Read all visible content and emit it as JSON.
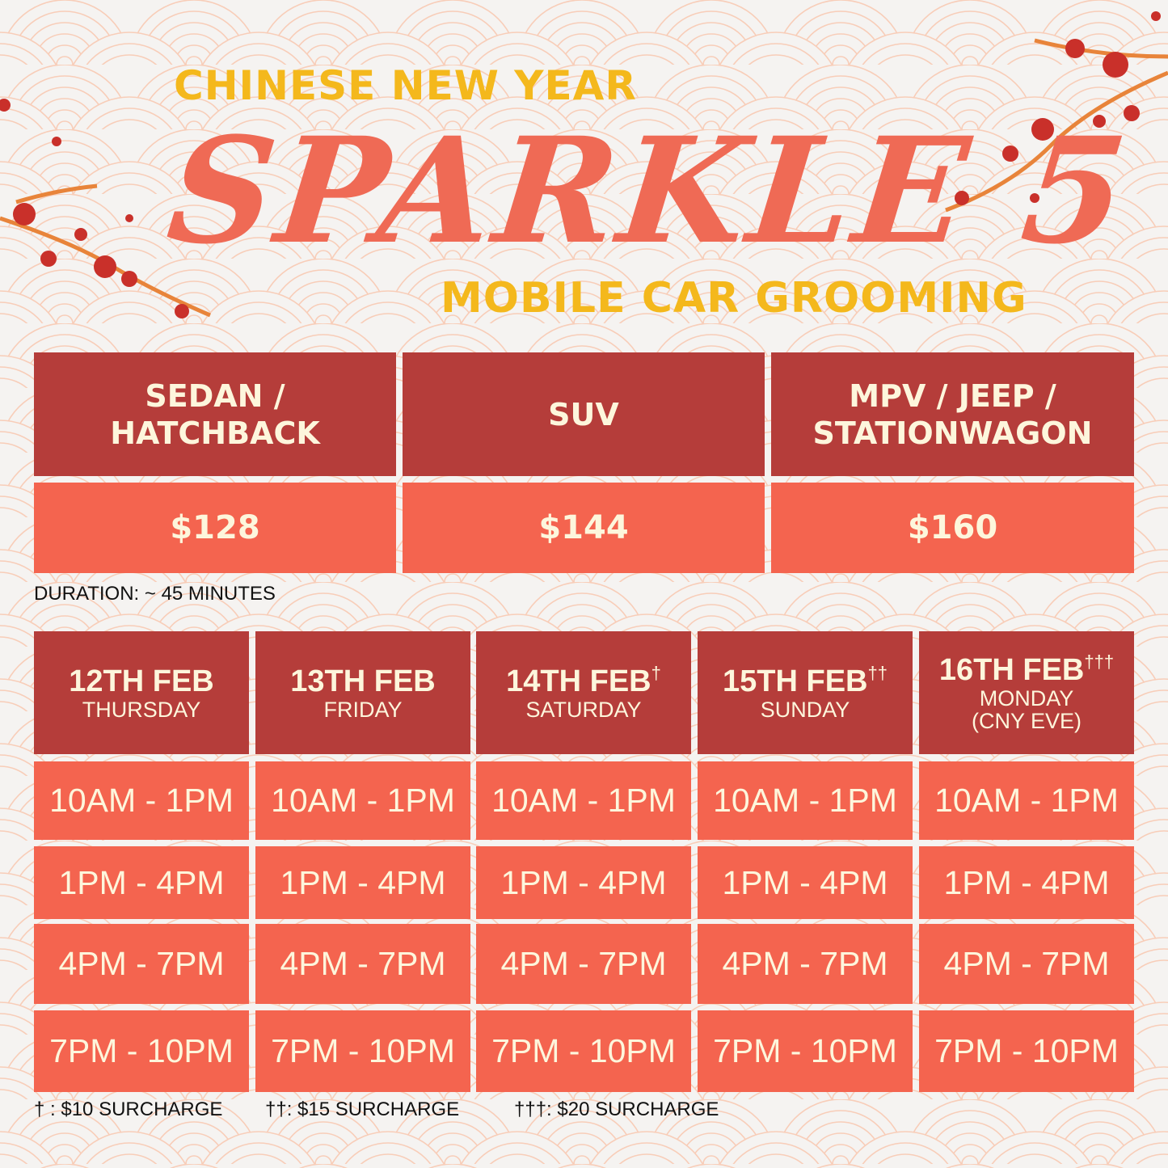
{
  "header": {
    "kicker": "CHINESE NEW YEAR",
    "title": "SPARKLE 5",
    "subtitle": "MOBILE CAR GROOMING"
  },
  "pricing": {
    "vehicles": [
      {
        "line1": "SEDAN /",
        "line2": "HATCHBACK",
        "price": "$128"
      },
      {
        "line1": "SUV",
        "line2": "",
        "price": "$144"
      },
      {
        "line1": "MPV / JEEP /",
        "line2": "STATIONWAGON",
        "price": "$160"
      }
    ],
    "duration": "DURATION: ~ 45 MINUTES"
  },
  "schedule": {
    "days": [
      {
        "date": "12TH FEB",
        "mark": "",
        "day": "THURSDAY",
        "day2": ""
      },
      {
        "date": "13TH FEB",
        "mark": "",
        "day": "FRIDAY",
        "day2": ""
      },
      {
        "date": "14TH FEB",
        "mark": "†",
        "day": "SATURDAY",
        "day2": ""
      },
      {
        "date": "15TH FEB",
        "mark": "††",
        "day": "SUNDAY",
        "day2": ""
      },
      {
        "date": "16TH FEB",
        "mark": "†††",
        "day": "MONDAY",
        "day2": "(CNY EVE)"
      }
    ],
    "slots": [
      "10AM - 1PM",
      "1PM - 4PM",
      "4PM - 7PM",
      "7PM - 10PM"
    ]
  },
  "footnotes": [
    "† : $10 SURCHARGE",
    "††: $15 SURCHARGE",
    "†††: $20 SURCHARGE"
  ],
  "colors": {
    "background": "#f5f3f1",
    "header_cell": "#b53d3a",
    "body_cell": "#f4644f",
    "cell_text": "#fdf6dc",
    "accent_yellow": "#f4b81c",
    "title_coral": "#ef6a55"
  },
  "decor": {
    "pattern": "seigaiha-waves",
    "ornament": "plum-blossom-branch"
  }
}
